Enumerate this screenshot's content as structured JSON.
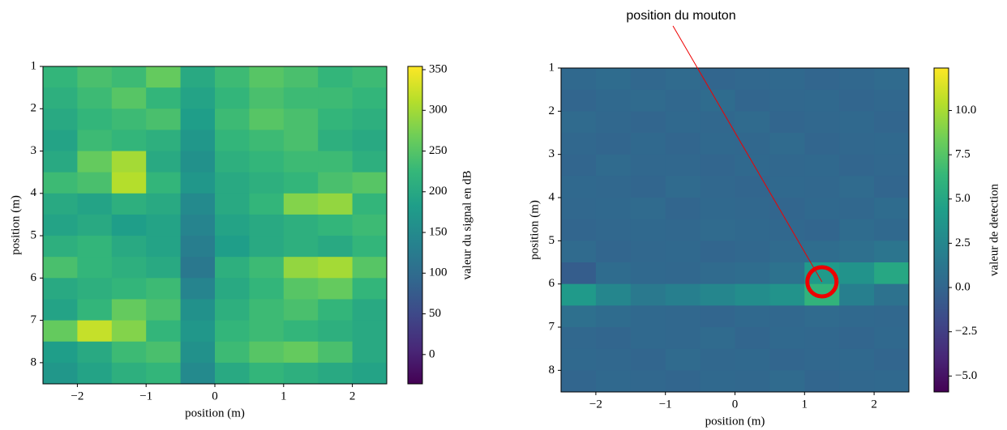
{
  "chart_data": [
    {
      "type": "heatmap",
      "xlabel": "position (m)",
      "ylabel": "position (m)",
      "colorbar_label": "valeur du signal en dB",
      "colormap": "viridis",
      "xlim": [
        -2.5,
        2.5
      ],
      "ylim": [
        8.5,
        1
      ],
      "clim": [
        -36,
        354
      ],
      "xticks": [
        {
          "value": -2,
          "label": "−2"
        },
        {
          "value": -1,
          "label": "−1"
        },
        0,
        1,
        2
      ],
      "yticks": [
        1,
        2,
        3,
        4,
        5,
        6,
        7,
        8
      ],
      "cticks": [
        0,
        50,
        100,
        150,
        200,
        250,
        300,
        350
      ],
      "x": [
        -2.25,
        -1.75,
        -1.25,
        -0.75,
        -0.25,
        0.25,
        0.75,
        1.25,
        1.75,
        2.25
      ],
      "y": [
        1.25,
        1.75,
        2.25,
        2.75,
        3.25,
        3.75,
        4.25,
        4.75,
        5.25,
        5.75,
        6.25,
        6.75,
        7.25,
        7.75,
        8.25
      ],
      "z": [
        [
          220,
          240,
          230,
          260,
          200,
          230,
          250,
          240,
          220,
          230
        ],
        [
          210,
          230,
          250,
          220,
          190,
          220,
          240,
          230,
          230,
          220
        ],
        [
          200,
          220,
          230,
          240,
          180,
          230,
          250,
          240,
          220,
          210
        ],
        [
          190,
          230,
          220,
          210,
          170,
          220,
          230,
          240,
          210,
          200
        ],
        [
          200,
          260,
          300,
          200,
          160,
          210,
          220,
          230,
          230,
          210
        ],
        [
          230,
          240,
          310,
          220,
          170,
          200,
          210,
          220,
          240,
          250
        ],
        [
          200,
          190,
          210,
          200,
          150,
          200,
          220,
          280,
          290,
          220
        ],
        [
          190,
          200,
          180,
          190,
          140,
          190,
          200,
          210,
          220,
          230
        ],
        [
          210,
          220,
          200,
          190,
          130,
          180,
          200,
          210,
          200,
          220
        ],
        [
          240,
          220,
          210,
          200,
          120,
          210,
          230,
          290,
          300,
          250
        ],
        [
          200,
          210,
          220,
          230,
          140,
          200,
          220,
          250,
          260,
          220
        ],
        [
          190,
          220,
          260,
          240,
          160,
          210,
          230,
          240,
          220,
          200
        ],
        [
          260,
          320,
          280,
          220,
          170,
          220,
          230,
          220,
          210,
          200
        ],
        [
          180,
          200,
          230,
          240,
          160,
          230,
          250,
          260,
          240,
          200
        ],
        [
          170,
          190,
          210,
          220,
          150,
          200,
          220,
          210,
          200,
          190
        ]
      ]
    },
    {
      "type": "heatmap",
      "xlabel": "position (m)",
      "ylabel": "position (m)",
      "colorbar_label": "valeur de detection",
      "colormap": "viridis",
      "annotation": "position du mouton",
      "annotation_xy": [
        1.25,
        5.95
      ],
      "xlim": [
        -2.5,
        2.5
      ],
      "ylim": [
        8.5,
        1
      ],
      "clim": [
        -5.9,
        12.4
      ],
      "xticks": [
        {
          "value": -2,
          "label": "−2"
        },
        {
          "value": -1,
          "label": "−1"
        },
        0,
        1,
        2
      ],
      "yticks": [
        1,
        2,
        3,
        4,
        5,
        6,
        7,
        8
      ],
      "cticks": [
        {
          "value": -5,
          "label": "−5.0"
        },
        {
          "value": -2.5,
          "label": "−2.5"
        },
        {
          "value": 0,
          "label": "0.0"
        },
        2.5,
        {
          "value": 5,
          "label": "5.0"
        },
        7.5,
        {
          "value": 10,
          "label": "10.0"
        }
      ],
      "x": [
        -2.25,
        -1.75,
        -1.25,
        -0.75,
        -0.25,
        0.25,
        0.75,
        1.25,
        1.75,
        2.25
      ],
      "y": [
        1.25,
        1.75,
        2.25,
        2.75,
        3.25,
        3.75,
        4.25,
        4.75,
        5.25,
        5.75,
        6.25,
        6.75,
        7.25,
        7.75,
        8.25
      ],
      "z": [
        [
          0.3,
          0.5,
          0.2,
          0.4,
          0.1,
          0.2,
          0.3,
          0.1,
          0.2,
          0.4
        ],
        [
          0.1,
          0.3,
          0.4,
          0.2,
          0.5,
          0.1,
          0.2,
          0.3,
          0.1,
          0.2
        ],
        [
          0.4,
          0.2,
          0.1,
          0.3,
          0.2,
          0.4,
          0.1,
          0.2,
          0.3,
          0.1
        ],
        [
          0.2,
          0.1,
          0.3,
          0.1,
          0.3,
          0.2,
          0.4,
          0.1,
          0.2,
          0.3
        ],
        [
          0.1,
          0.4,
          0.2,
          0.2,
          0.1,
          0.3,
          0.2,
          0.3,
          0.1,
          0.2
        ],
        [
          0.3,
          0.2,
          0.1,
          0.4,
          0.2,
          0.1,
          0.3,
          0.2,
          0.4,
          0.1
        ],
        [
          0.2,
          0.3,
          0.4,
          0.1,
          0.3,
          0.2,
          0.1,
          0.3,
          0.2,
          0.5
        ],
        [
          0.1,
          0.2,
          0.3,
          0.2,
          0.4,
          0.3,
          0.2,
          0.1,
          0.5,
          0.3
        ],
        [
          0.4,
          0.1,
          0.2,
          0.3,
          0.1,
          0.2,
          0.4,
          0.6,
          0.8,
          1.2
        ],
        [
          -0.5,
          0.5,
          0.3,
          0.2,
          0.4,
          0.6,
          1.0,
          4.0,
          3.5,
          5.0
        ],
        [
          4.0,
          2.5,
          1.5,
          2.0,
          2.5,
          3.0,
          3.5,
          6.0,
          2.0,
          1.0
        ],
        [
          0.8,
          0.5,
          0.3,
          0.2,
          0.1,
          0.3,
          0.2,
          0.4,
          0.3,
          0.2
        ],
        [
          0.2,
          0.1,
          0.3,
          0.2,
          0.4,
          0.1,
          0.3,
          0.2,
          0.1,
          0.3
        ],
        [
          0.3,
          0.2,
          0.1,
          0.4,
          0.2,
          0.3,
          0.1,
          0.2,
          0.3,
          0.1
        ],
        [
          0.1,
          0.3,
          0.2,
          0.1,
          0.3,
          0.2,
          0.4,
          0.1,
          0.2,
          0.3
        ]
      ]
    }
  ]
}
